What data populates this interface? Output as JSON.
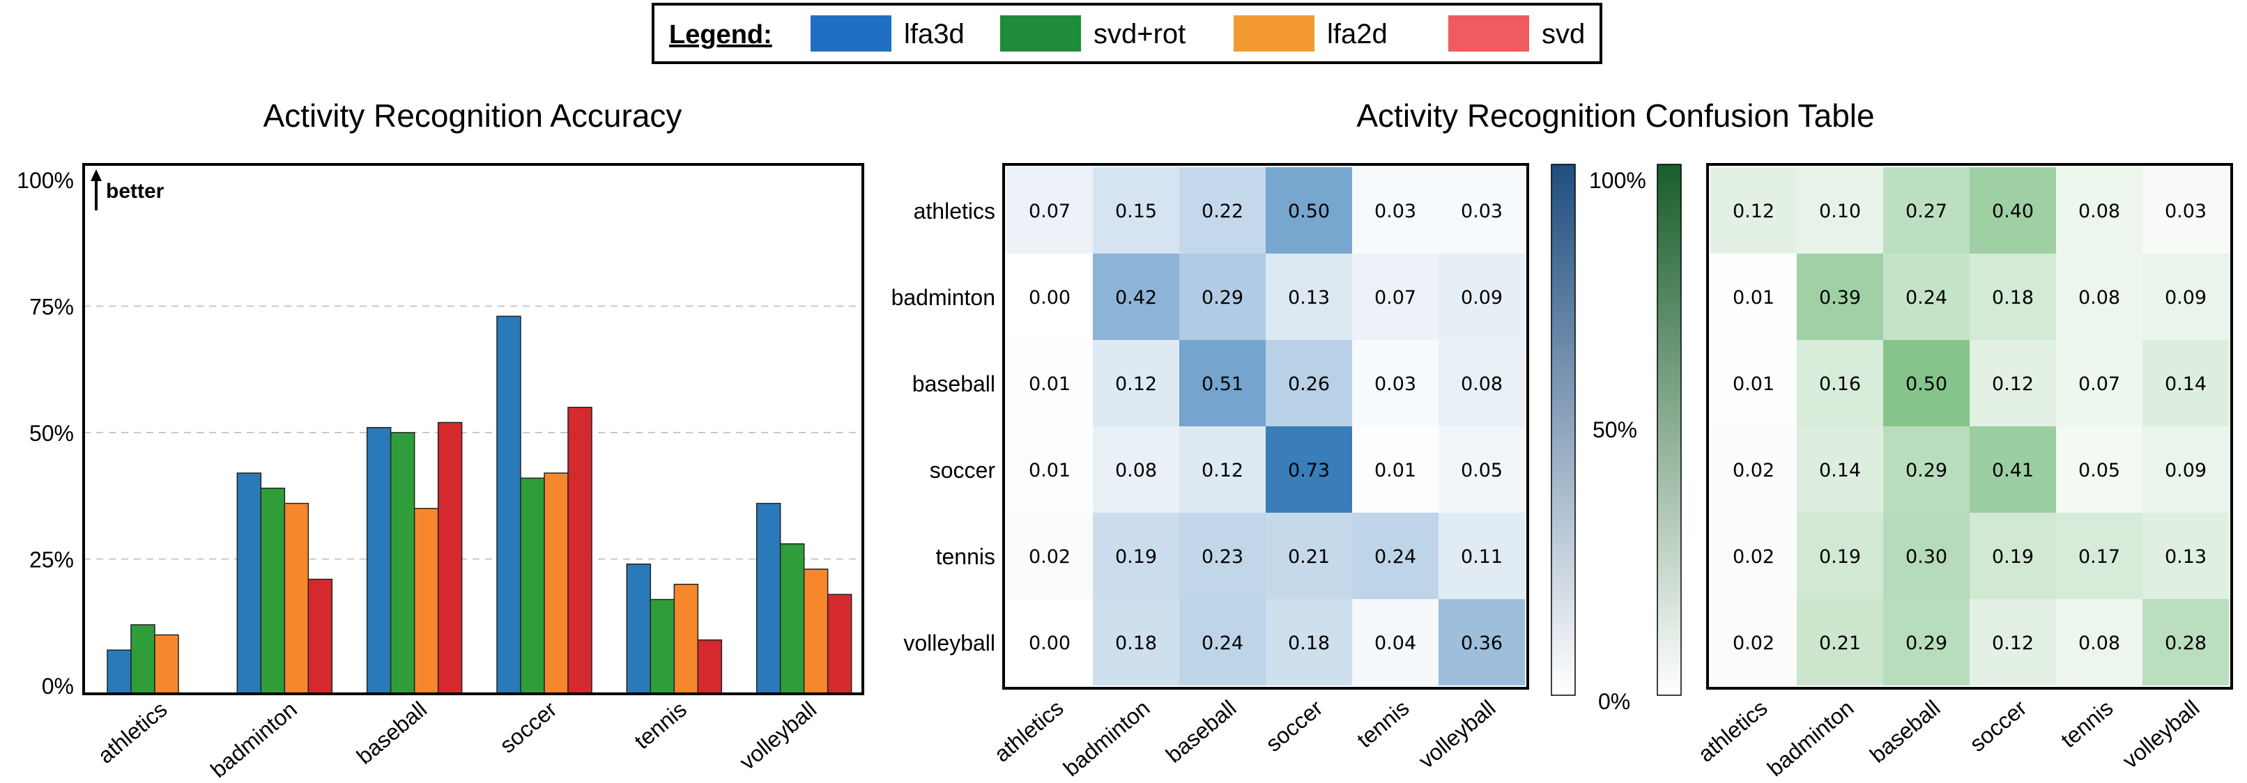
{
  "legend": {
    "title": "Legend:",
    "entries": [
      {
        "name": "lfa3d",
        "color": "#1f6fc5"
      },
      {
        "name": "svd+rot",
        "color": "#1e8c3a"
      },
      {
        "name": "lfa2d",
        "color": "#f39a32"
      },
      {
        "name": "svd",
        "color": "#ef5b5e"
      }
    ]
  },
  "chart_data": [
    {
      "type": "bar",
      "title": "Activity Recognition Accuracy",
      "annotation": "better",
      "categories": [
        "athletics",
        "badminton",
        "baseball",
        "soccer",
        "tennis",
        "volleyball"
      ],
      "ylim": [
        0,
        1
      ],
      "yticks": [
        {
          "value": 0,
          "label": "0%"
        },
        {
          "value": 0.25,
          "label": "25%"
        },
        {
          "value": 0.5,
          "label": "50%"
        },
        {
          "value": 0.75,
          "label": "75%"
        },
        {
          "value": 1.0,
          "label": "100%"
        }
      ],
      "grid": "horizontal-dashed",
      "series": [
        {
          "name": "lfa3d",
          "color": "#2a7ab9",
          "values": [
            0.07,
            0.42,
            0.51,
            0.73,
            0.24,
            0.36
          ]
        },
        {
          "name": "svd+rot",
          "color": "#2f9e3a",
          "values": [
            0.12,
            0.39,
            0.5,
            0.41,
            0.17,
            0.28
          ]
        },
        {
          "name": "lfa2d",
          "color": "#f7872c",
          "values": [
            0.1,
            0.36,
            0.35,
            0.42,
            0.2,
            0.23
          ]
        },
        {
          "name": "svd",
          "color": "#d42a2e",
          "values": [
            0.0,
            0.21,
            0.52,
            0.55,
            0.09,
            0.18
          ]
        }
      ]
    },
    {
      "type": "heatmap",
      "title": "Activity Recognition Confusion Table",
      "rows": [
        "athletics",
        "badminton",
        "baseball",
        "soccer",
        "tennis",
        "volleyball"
      ],
      "cols": [
        "athletics",
        "badminton",
        "baseball",
        "soccer",
        "tennis",
        "volleyball"
      ],
      "colorbar": {
        "color": "#1f4e7e",
        "labels": {
          "max": "100%",
          "mid": "50%",
          "min": "0%"
        }
      },
      "values": [
        [
          "0.07",
          "0.15",
          "0.22",
          "0.50",
          "0.03",
          "0.03"
        ],
        [
          "0.00",
          "0.42",
          "0.29",
          "0.13",
          "0.07",
          "0.09"
        ],
        [
          "0.01",
          "0.12",
          "0.51",
          "0.26",
          "0.03",
          "0.08"
        ],
        [
          "0.01",
          "0.08",
          "0.12",
          "0.73",
          "0.01",
          "0.05"
        ],
        [
          "0.02",
          "0.19",
          "0.23",
          "0.21",
          "0.24",
          "0.11"
        ],
        [
          "0.00",
          "0.18",
          "0.24",
          "0.18",
          "0.04",
          "0.36"
        ]
      ]
    },
    {
      "type": "heatmap",
      "title": "",
      "rows": [
        "athletics",
        "badminton",
        "baseball",
        "soccer",
        "tennis",
        "volleyball"
      ],
      "cols": [
        "athletics",
        "badminton",
        "baseball",
        "soccer",
        "tennis",
        "volleyball"
      ],
      "colorbar": {
        "color": "#1a5e2a"
      },
      "values": [
        [
          "0.12",
          "0.10",
          "0.27",
          "0.40",
          "0.08",
          "0.03"
        ],
        [
          "0.01",
          "0.39",
          "0.24",
          "0.18",
          "0.08",
          "0.09"
        ],
        [
          "0.01",
          "0.16",
          "0.50",
          "0.12",
          "0.07",
          "0.14"
        ],
        [
          "0.02",
          "0.14",
          "0.29",
          "0.41",
          "0.05",
          "0.09"
        ],
        [
          "0.02",
          "0.19",
          "0.30",
          "0.19",
          "0.17",
          "0.13"
        ],
        [
          "0.02",
          "0.21",
          "0.29",
          "0.12",
          "0.08",
          "0.28"
        ]
      ]
    }
  ]
}
